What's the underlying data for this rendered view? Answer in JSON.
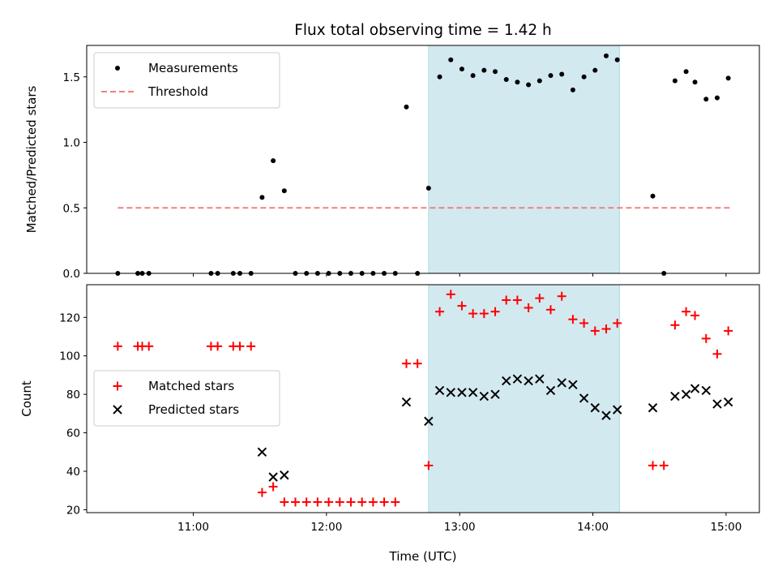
{
  "chart_data": [
    {
      "type": "scatter",
      "title": "Flux total observing time = 1.42 h",
      "ylabel": "Matched/Predicted stars",
      "xlabel": "",
      "x_ticks": [
        "11:00",
        "12:00",
        "13:00",
        "14:00",
        "15:00"
      ],
      "xlim": [
        "10:12",
        "15:15"
      ],
      "ylim": [
        0,
        1.74
      ],
      "y_ticks": [
        "0.0",
        "0.5",
        "1.0",
        "1.5"
      ],
      "shaded_region": {
        "x_start": "12:46",
        "x_end": "14:12",
        "color": "#d3e9f0"
      },
      "legend": {
        "position": "upper-left",
        "entries": [
          "Measurements",
          "Threshold"
        ]
      },
      "series": [
        {
          "name": "Measurements",
          "marker": "dot",
          "color": "#000000",
          "points": [
            [
              "10:26",
              0.0
            ],
            [
              "10:35",
              0.0
            ],
            [
              "10:37",
              0.0
            ],
            [
              "10:40",
              0.0
            ],
            [
              "11:08",
              0.0
            ],
            [
              "11:11",
              0.0
            ],
            [
              "11:18",
              0.0
            ],
            [
              "11:21",
              0.0
            ],
            [
              "11:26",
              0.0
            ],
            [
              "11:31",
              0.58
            ],
            [
              "11:36",
              0.86
            ],
            [
              "11:41",
              0.63
            ],
            [
              "11:46",
              0.0
            ],
            [
              "11:51",
              0.0
            ],
            [
              "11:56",
              0.0
            ],
            [
              "12:01",
              0.0
            ],
            [
              "12:06",
              0.0
            ],
            [
              "12:11",
              0.0
            ],
            [
              "12:16",
              0.0
            ],
            [
              "12:21",
              0.0
            ],
            [
              "12:26",
              0.0
            ],
            [
              "12:31",
              0.0
            ],
            [
              "12:36",
              1.27
            ],
            [
              "12:41",
              0.0
            ],
            [
              "12:46",
              0.65
            ],
            [
              "12:51",
              1.5
            ],
            [
              "12:56",
              1.63
            ],
            [
              "13:01",
              1.56
            ],
            [
              "13:06",
              1.51
            ],
            [
              "13:11",
              1.55
            ],
            [
              "13:16",
              1.54
            ],
            [
              "13:21",
              1.48
            ],
            [
              "13:26",
              1.46
            ],
            [
              "13:31",
              1.44
            ],
            [
              "13:36",
              1.47
            ],
            [
              "13:41",
              1.51
            ],
            [
              "13:46",
              1.52
            ],
            [
              "13:51",
              1.4
            ],
            [
              "13:56",
              1.5
            ],
            [
              "14:01",
              1.55
            ],
            [
              "14:06",
              1.66
            ],
            [
              "14:11",
              1.63
            ],
            [
              "14:27",
              0.59
            ],
            [
              "14:32",
              0.0
            ],
            [
              "14:37",
              1.47
            ],
            [
              "14:42",
              1.54
            ],
            [
              "14:46",
              1.46
            ],
            [
              "14:51",
              1.33
            ],
            [
              "14:56",
              1.34
            ],
            [
              "15:01",
              1.49
            ]
          ]
        },
        {
          "name": "Threshold",
          "type": "line",
          "style": "dashed",
          "color": "#f08080",
          "points": [
            [
              "10:26",
              0.5
            ],
            [
              "15:02",
              0.5
            ]
          ]
        }
      ]
    },
    {
      "type": "scatter",
      "title": "",
      "ylabel": "Count",
      "xlabel": "Time (UTC)",
      "x_ticks": [
        "11:00",
        "12:00",
        "13:00",
        "14:00",
        "15:00"
      ],
      "xlim": [
        "10:12",
        "15:15"
      ],
      "ylim": [
        18.5,
        137
      ],
      "y_ticks": [
        "20",
        "40",
        "60",
        "80",
        "100",
        "120"
      ],
      "shaded_region": {
        "x_start": "12:46",
        "x_end": "14:12",
        "color": "#d3e9f0"
      },
      "legend": {
        "position": "center-left",
        "entries": [
          "Matched stars",
          "Predicted stars"
        ]
      },
      "series": [
        {
          "name": "Matched stars",
          "marker": "plus",
          "color": "#ff0000",
          "points": [
            [
              "10:26",
              105
            ],
            [
              "10:35",
              105
            ],
            [
              "10:37",
              105
            ],
            [
              "10:40",
              105
            ],
            [
              "11:08",
              105
            ],
            [
              "11:11",
              105
            ],
            [
              "11:18",
              105
            ],
            [
              "11:21",
              105
            ],
            [
              "11:26",
              105
            ],
            [
              "11:31",
              29
            ],
            [
              "11:36",
              32
            ],
            [
              "11:41",
              24
            ],
            [
              "11:46",
              24
            ],
            [
              "11:51",
              24
            ],
            [
              "11:56",
              24
            ],
            [
              "12:01",
              24
            ],
            [
              "12:06",
              24
            ],
            [
              "12:11",
              24
            ],
            [
              "12:16",
              24
            ],
            [
              "12:21",
              24
            ],
            [
              "12:26",
              24
            ],
            [
              "12:31",
              24
            ],
            [
              "12:36",
              96
            ],
            [
              "12:41",
              96
            ],
            [
              "12:46",
              43
            ],
            [
              "12:51",
              123
            ],
            [
              "12:56",
              132
            ],
            [
              "13:01",
              126
            ],
            [
              "13:06",
              122
            ],
            [
              "13:11",
              122
            ],
            [
              "13:16",
              123
            ],
            [
              "13:21",
              129
            ],
            [
              "13:26",
              129
            ],
            [
              "13:31",
              125
            ],
            [
              "13:36",
              130
            ],
            [
              "13:41",
              124
            ],
            [
              "13:46",
              131
            ],
            [
              "13:51",
              119
            ],
            [
              "13:56",
              117
            ],
            [
              "14:01",
              113
            ],
            [
              "14:06",
              114
            ],
            [
              "14:11",
              117
            ],
            [
              "14:27",
              43
            ],
            [
              "14:32",
              43
            ],
            [
              "14:37",
              116
            ],
            [
              "14:42",
              123
            ],
            [
              "14:46",
              121
            ],
            [
              "14:51",
              109
            ],
            [
              "14:56",
              101
            ],
            [
              "15:01",
              113
            ]
          ]
        },
        {
          "name": "Predicted stars",
          "marker": "x",
          "color": "#000000",
          "points": [
            [
              "11:31",
              50
            ],
            [
              "11:36",
              37
            ],
            [
              "11:41",
              38
            ],
            [
              "12:36",
              76
            ],
            [
              "12:46",
              66
            ],
            [
              "12:51",
              82
            ],
            [
              "12:56",
              81
            ],
            [
              "13:01",
              81
            ],
            [
              "13:06",
              81
            ],
            [
              "13:11",
              79
            ],
            [
              "13:16",
              80
            ],
            [
              "13:21",
              87
            ],
            [
              "13:26",
              88
            ],
            [
              "13:31",
              87
            ],
            [
              "13:36",
              88
            ],
            [
              "13:41",
              82
            ],
            [
              "13:46",
              86
            ],
            [
              "13:51",
              85
            ],
            [
              "13:56",
              78
            ],
            [
              "14:01",
              73
            ],
            [
              "14:06",
              69
            ],
            [
              "14:11",
              72
            ],
            [
              "14:27",
              73
            ],
            [
              "14:37",
              79
            ],
            [
              "14:42",
              80
            ],
            [
              "14:46",
              83
            ],
            [
              "14:51",
              82
            ],
            [
              "14:56",
              75
            ],
            [
              "15:01",
              76
            ]
          ]
        }
      ]
    }
  ]
}
